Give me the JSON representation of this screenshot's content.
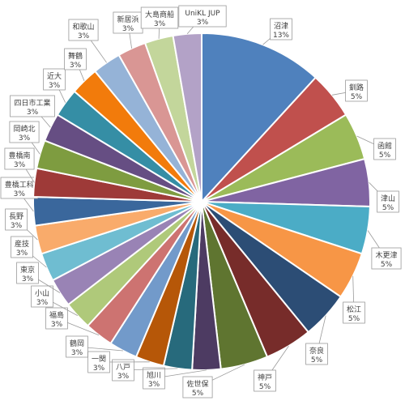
{
  "chart_data": {
    "type": "pie",
    "slices": [
      {
        "label": "沼津",
        "value": 13,
        "percent_label": "13%",
        "color": "#4F81BD"
      },
      {
        "label": "釧路",
        "value": 5,
        "percent_label": "5%",
        "color": "#C0504D"
      },
      {
        "label": "函館",
        "value": 5,
        "percent_label": "5%",
        "color": "#9BBB59"
      },
      {
        "label": "津山",
        "value": 5,
        "percent_label": "5%",
        "color": "#8064A2"
      },
      {
        "label": "木更津",
        "value": 5,
        "percent_label": "5%",
        "color": "#4BACC6"
      },
      {
        "label": "松江",
        "value": 5,
        "percent_label": "5%",
        "color": "#F79646"
      },
      {
        "label": "奈良",
        "value": 5,
        "percent_label": "5%",
        "color": "#2C4D75"
      },
      {
        "label": "神戸",
        "value": 5,
        "percent_label": "5%",
        "color": "#772C2A"
      },
      {
        "label": "佐世保",
        "value": 5,
        "percent_label": "5%",
        "color": "#5F7530"
      },
      {
        "label": "旭川",
        "value": 3,
        "percent_label": "3%",
        "color": "#4D3B62"
      },
      {
        "label": "八戸",
        "value": 3,
        "percent_label": "3%",
        "color": "#276A7C"
      },
      {
        "label": "一関",
        "value": 3,
        "percent_label": "3%",
        "color": "#B65708"
      },
      {
        "label": "鶴岡",
        "value": 3,
        "percent_label": "3%",
        "color": "#729ACA"
      },
      {
        "label": "福島",
        "value": 3,
        "percent_label": "3%",
        "color": "#CD7371"
      },
      {
        "label": "小山",
        "value": 3,
        "percent_label": "3%",
        "color": "#AFC97A"
      },
      {
        "label": "東京",
        "value": 3,
        "percent_label": "3%",
        "color": "#9983B5"
      },
      {
        "label": "産技",
        "value": 3,
        "percent_label": "3%",
        "color": "#6FBDD1"
      },
      {
        "label": "長野",
        "value": 3,
        "percent_label": "3%",
        "color": "#F9AB6B"
      },
      {
        "label": "豊橋工科",
        "value": 3,
        "percent_label": "3%",
        "color": "#3A679C"
      },
      {
        "label": "豊橋南",
        "value": 3,
        "percent_label": "3%",
        "color": "#9E3A38"
      },
      {
        "label": "岡崎北",
        "value": 3,
        "percent_label": "3%",
        "color": "#7E9C40"
      },
      {
        "label": "四日市工業",
        "value": 3,
        "percent_label": "3%",
        "color": "#664E83"
      },
      {
        "label": "近大",
        "value": 3,
        "percent_label": "3%",
        "color": "#358EA5"
      },
      {
        "label": "舞鶴",
        "value": 3,
        "percent_label": "3%",
        "color": "#F27B0B"
      },
      {
        "label": "和歌山",
        "value": 3,
        "percent_label": "3%",
        "color": "#95B3D7"
      },
      {
        "label": "新居浜",
        "value": 3,
        "percent_label": "3%",
        "color": "#D99694"
      },
      {
        "label": "大島商船",
        "value": 3,
        "percent_label": "3%",
        "color": "#C3D69B"
      },
      {
        "label": "UniKL JUP",
        "value": 3,
        "percent_label": "3%",
        "color": "#B3A2C7"
      }
    ]
  }
}
